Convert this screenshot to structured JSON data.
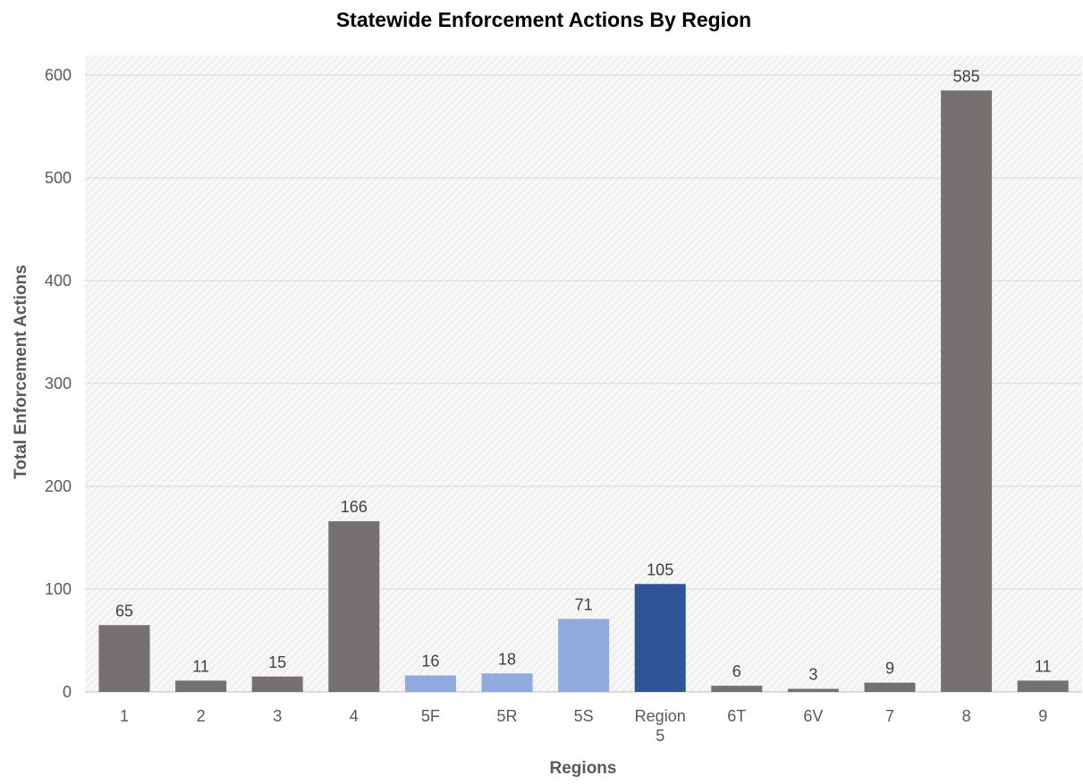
{
  "chart_data": {
    "type": "bar",
    "title": "Statewide Enforcement Actions By Region",
    "xlabel": "Regions",
    "ylabel": "Total Enforcement Actions",
    "categories": [
      "1",
      "2",
      "3",
      "4",
      "5F",
      "5R",
      "5S",
      "Region 5",
      "6T",
      "6V",
      "7",
      "8",
      "9"
    ],
    "values": [
      65,
      11,
      15,
      166,
      16,
      18,
      71,
      105,
      6,
      3,
      9,
      585,
      11
    ],
    "bar_colors": [
      "#767171",
      "#767171",
      "#767171",
      "#767171",
      "#8faadc",
      "#8faadc",
      "#8faadc",
      "#2f5597",
      "#767171",
      "#767171",
      "#767171",
      "#767171",
      "#767171"
    ],
    "ylim": [
      0,
      600
    ],
    "yticks": [
      0,
      100,
      200,
      300,
      400,
      500,
      600
    ],
    "grid": true,
    "legend": "none"
  },
  "colors": {
    "gray_bar": "#767171",
    "light_blue_bar": "#8faadc",
    "dark_blue_bar": "#2f5597",
    "plot_background": "#f2f2f2",
    "gridline": "#d9d9d9"
  }
}
